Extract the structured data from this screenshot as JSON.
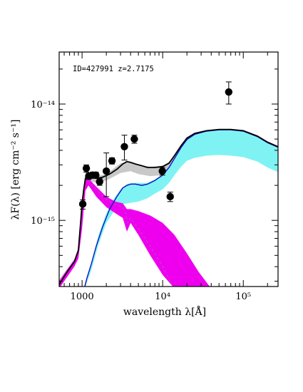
{
  "chart_data": {
    "type": "scatter",
    "annotation": "ID=427991  z=2.7175",
    "xlabel": "wavelength λ[Å]",
    "ylabel": "λF(λ) [erg cm⁻² s⁻¹]",
    "xscale": "log",
    "yscale": "log",
    "xlim": [
      520,
      270000
    ],
    "ylim": [
      2.7e-16,
      2.8e-14
    ],
    "x_ticks": [
      {
        "value": 1000,
        "label": "1000"
      },
      {
        "value": 10000,
        "label": "10⁴"
      },
      {
        "value": 100000,
        "label": "10⁵"
      }
    ],
    "y_ticks": [
      {
        "value": 1e-15,
        "label": "10⁻¹⁵"
      },
      {
        "value": 1e-14,
        "label": "10⁻¹⁴"
      }
    ],
    "colors": {
      "total_model": "#000000",
      "total_band": "#c8c8c8",
      "agn_model": "#1010c8",
      "agn_band": "#7ff3f3",
      "host_model": "#c040c0",
      "host_band": "#ee00ee",
      "points": "#000000"
    },
    "data_points": [
      {
        "x": 1020,
        "y": 1.38e-15,
        "yerr_low": 1.25e-15,
        "yerr_high": 1.5e-15
      },
      {
        "x": 1130,
        "y": 2.8e-15,
        "yerr_low": 2.6e-15,
        "yerr_high": 3e-15
      },
      {
        "x": 1210,
        "y": 2.4e-15,
        "yerr_low": 2.25e-15,
        "yerr_high": 2.55e-15
      },
      {
        "x": 1350,
        "y": 2.45e-15,
        "yerr_low": 2.3e-15,
        "yerr_high": 2.6e-15
      },
      {
        "x": 1480,
        "y": 2.45e-15,
        "yerr_low": 2.3e-15,
        "yerr_high": 2.6e-15
      },
      {
        "x": 1650,
        "y": 2.15e-15,
        "yerr_low": 2e-15,
        "yerr_high": 2.3e-15
      },
      {
        "x": 2000,
        "y": 2.65e-15,
        "yerr_low": 1.6e-15,
        "yerr_high": 3.8e-15
      },
      {
        "x": 2350,
        "y": 3.25e-15,
        "yerr_low": 3.05e-15,
        "yerr_high": 3.45e-15
      },
      {
        "x": 3350,
        "y": 4.3e-15,
        "yerr_low": 3.3e-15,
        "yerr_high": 5.4e-15
      },
      {
        "x": 4450,
        "y": 5e-15,
        "yerr_low": 4.6e-15,
        "yerr_high": 5.4e-15
      },
      {
        "x": 9900,
        "y": 2.65e-15,
        "yerr_low": 2.45e-15,
        "yerr_high": 2.85e-15
      },
      {
        "x": 12400,
        "y": 1.6e-15,
        "yerr_low": 1.45e-15,
        "yerr_high": 1.75e-15
      },
      {
        "x": 66000,
        "y": 1.27e-14,
        "yerr_low": 1e-14,
        "yerr_high": 1.55e-14
      }
    ],
    "total_model": {
      "x": [
        520,
        650,
        800,
        900,
        970,
        1000,
        1050,
        1100,
        1150,
        1200,
        1300,
        1500,
        1800,
        2200,
        2700,
        3200,
        3600,
        4000,
        4600,
        5500,
        6500,
        8000,
        10000,
        12000,
        14000,
        17000,
        20000,
        25000,
        35000,
        50000,
        70000,
        100000,
        150000,
        200000,
        270000
      ],
      "y": [
        2.8e-16,
        3.6e-16,
        4.4e-16,
        5.5e-16,
        1.05e-15,
        1.4e-15,
        1.85e-15,
        2.3e-15,
        2.45e-15,
        2.4e-15,
        2.35e-15,
        2.3e-15,
        2.35e-15,
        2.5e-15,
        2.75e-15,
        3.05e-15,
        3.2e-15,
        3.15e-15,
        3.05e-15,
        2.95e-15,
        2.85e-15,
        2.85e-15,
        2.9e-15,
        3.1e-15,
        3.6e-15,
        4.4e-15,
        5.1e-15,
        5.6e-15,
        5.9e-15,
        6.05e-15,
        6.05e-15,
        5.9e-15,
        5.3e-15,
        4.7e-15,
        4.3e-15
      ]
    },
    "total_band": {
      "x": [
        520,
        800,
        900,
        1000,
        1100,
        1200,
        1500,
        2000,
        3000,
        4000,
        5000,
        7000,
        10000,
        12000,
        15000,
        20000,
        25000,
        35000,
        50000,
        70000,
        100000,
        150000,
        200000,
        270000
      ],
      "upper": [
        3.1e-16,
        4.6e-16,
        5.9e-16,
        1.5e-15,
        2.4e-15,
        2.5e-15,
        2.4e-15,
        2.5e-15,
        3.1e-15,
        3.2e-15,
        3e-15,
        2.9e-15,
        2.95e-15,
        3.2e-15,
        3.8e-15,
        4.9e-15,
        5.5e-15,
        5.85e-15,
        6e-15,
        6e-15,
        5.85e-15,
        5.2e-15,
        4.6e-15,
        4.2e-15
      ],
      "lower": [
        2.7e-16,
        4e-16,
        4.8e-16,
        9e-16,
        1.9e-15,
        2.2e-15,
        2.1e-15,
        2.2e-15,
        2.55e-15,
        2.65e-15,
        2.5e-15,
        2.4e-15,
        2.45e-15,
        2.6e-15,
        3e-15,
        3.5e-15,
        3.6e-15,
        3.7e-15,
        3.7e-15,
        3.65e-15,
        3.55e-15,
        3.25e-15,
        2.9e-15,
        2.6e-15
      ]
    },
    "agn_model": {
      "x": [
        1080,
        1150,
        1300,
        1500,
        1800,
        2200,
        2700,
        3200,
        3600,
        4000,
        4600,
        5500,
        6500,
        8000,
        10000,
        12000,
        14000,
        17000,
        20000,
        25000,
        35000,
        50000,
        70000,
        100000,
        150000,
        200000,
        270000
      ],
      "y": [
        2.7e-16,
        3.2e-16,
        4.2e-16,
        6e-16,
        8.8e-16,
        1.25e-15,
        1.6e-15,
        1.9e-15,
        2e-15,
        2.05e-15,
        2.05e-15,
        2e-15,
        2.05e-15,
        2.2e-15,
        2.45e-15,
        2.85e-15,
        3.4e-15,
        4.25e-15,
        4.95e-15,
        5.5e-15,
        5.85e-15,
        6e-15,
        6e-15,
        5.85e-15,
        5.25e-15,
        4.65e-15,
        4.25e-15
      ]
    },
    "agn_band": {
      "x": [
        1080,
        1300,
        1600,
        2000,
        2500,
        3000,
        3600,
        4200,
        5000,
        6500,
        8000,
        10000,
        12000,
        14000,
        17000,
        20000,
        25000,
        35000,
        50000,
        70000,
        100000,
        150000,
        200000,
        270000
      ],
      "upper": [
        2.8e-16,
        4.3e-16,
        7.5e-16,
        1.15e-15,
        1.55e-15,
        1.85e-15,
        2.05e-15,
        2.1e-15,
        2.1e-15,
        2.1e-15,
        2.25e-15,
        2.5e-15,
        2.9e-15,
        3.45e-15,
        4.3e-15,
        5e-15,
        5.5e-15,
        5.85e-15,
        6e-15,
        6e-15,
        5.85e-15,
        5.25e-15,
        4.65e-15,
        4.25e-15
      ],
      "lower": [
        2.6e-16,
        3.7e-16,
        6.2e-16,
        9.5e-16,
        1.2e-15,
        1.35e-15,
        1.4e-15,
        1.42e-15,
        1.45e-15,
        1.55e-15,
        1.7e-15,
        1.85e-15,
        2.1e-15,
        2.45e-15,
        2.9e-15,
        3.25e-15,
        3.45e-15,
        3.6e-15,
        3.65e-15,
        3.6e-15,
        3.5e-15,
        3.2e-15,
        2.85e-15,
        2.6e-15
      ]
    },
    "host_model": {
      "x": [
        520,
        650,
        800,
        900,
        970,
        1000,
        1050,
        1100,
        1150,
        1200,
        1300,
        1500,
        1800,
        2200,
        2700,
        3200,
        3500,
        3700,
        4000,
        5000,
        7000,
        10000,
        13000
      ],
      "y": [
        2.8e-16,
        3.6e-16,
        4.4e-16,
        5.4e-16,
        1e-15,
        1.35e-15,
        1.8e-15,
        2.2e-15,
        2.3e-15,
        2.2e-15,
        2.05e-15,
        1.85e-15,
        1.6e-15,
        1.45e-15,
        1.35e-15,
        1.3e-15,
        1.15e-15,
        9.5e-16,
        1.05e-15,
        8.5e-16,
        6e-16,
        4e-16,
        2.8e-16
      ]
    },
    "host_band": {
      "x": [
        520,
        800,
        900,
        1000,
        1100,
        1200,
        1500,
        2000,
        2600,
        3200,
        3600,
        4000,
        5000,
        7000,
        10000,
        14000,
        20000,
        28000,
        40000
      ],
      "upper": [
        3e-16,
        4.6e-16,
        5.7e-16,
        1.45e-15,
        2.3e-15,
        2.3e-15,
        1.95e-15,
        1.6e-15,
        1.45e-15,
        1.4e-15,
        1.25e-15,
        1.25e-15,
        1.2e-15,
        1.1e-15,
        9.5e-16,
        7.5e-16,
        5.2e-16,
        3.6e-16,
        2.6e-16
      ],
      "lower": [
        2.6e-16,
        4e-16,
        4.7e-16,
        8.5e-16,
        1.8e-15,
        2e-15,
        1.6e-15,
        1.3e-15,
        1.15e-15,
        1.05e-15,
        8e-16,
        9.5e-16,
        7.5e-16,
        5e-16,
        3.4e-16,
        2.6e-16,
        2.6e-16,
        2.6e-16,
        2.6e-16
      ]
    }
  }
}
